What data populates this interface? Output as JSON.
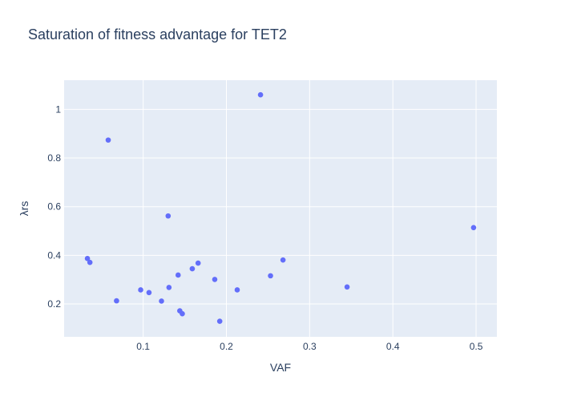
{
  "chart_data": {
    "type": "scatter",
    "title": "Saturation of fitness advantage for TET2",
    "xlabel": "VAF",
    "ylabel": "λrs",
    "xlim": [
      0.005,
      0.525
    ],
    "ylim": [
      0.065,
      1.12
    ],
    "xticks": [
      0.1,
      0.2,
      0.3,
      0.4,
      0.5
    ],
    "xtick_labels": [
      "0.1",
      "0.2",
      "0.3",
      "0.4",
      "0.5"
    ],
    "yticks": [
      0.2,
      0.4,
      0.6,
      0.8,
      1.0
    ],
    "ytick_labels": [
      "0.2",
      "0.4",
      "0.6",
      "0.8",
      "1"
    ],
    "grid": true,
    "legend": "none",
    "marker_color": "#636efa",
    "plot_bg": "#e5ecf6",
    "points": [
      {
        "x": 0.033,
        "y": 0.387
      },
      {
        "x": 0.036,
        "y": 0.371
      },
      {
        "x": 0.058,
        "y": 0.874
      },
      {
        "x": 0.068,
        "y": 0.213
      },
      {
        "x": 0.097,
        "y": 0.258
      },
      {
        "x": 0.107,
        "y": 0.247
      },
      {
        "x": 0.122,
        "y": 0.212
      },
      {
        "x": 0.13,
        "y": 0.562
      },
      {
        "x": 0.131,
        "y": 0.268
      },
      {
        "x": 0.142,
        "y": 0.319
      },
      {
        "x": 0.144,
        "y": 0.172
      },
      {
        "x": 0.147,
        "y": 0.16
      },
      {
        "x": 0.159,
        "y": 0.345
      },
      {
        "x": 0.166,
        "y": 0.368
      },
      {
        "x": 0.186,
        "y": 0.301
      },
      {
        "x": 0.192,
        "y": 0.129
      },
      {
        "x": 0.213,
        "y": 0.258
      },
      {
        "x": 0.241,
        "y": 1.06
      },
      {
        "x": 0.253,
        "y": 0.316
      },
      {
        "x": 0.268,
        "y": 0.381
      },
      {
        "x": 0.345,
        "y": 0.27
      },
      {
        "x": 0.497,
        "y": 0.514
      }
    ]
  }
}
